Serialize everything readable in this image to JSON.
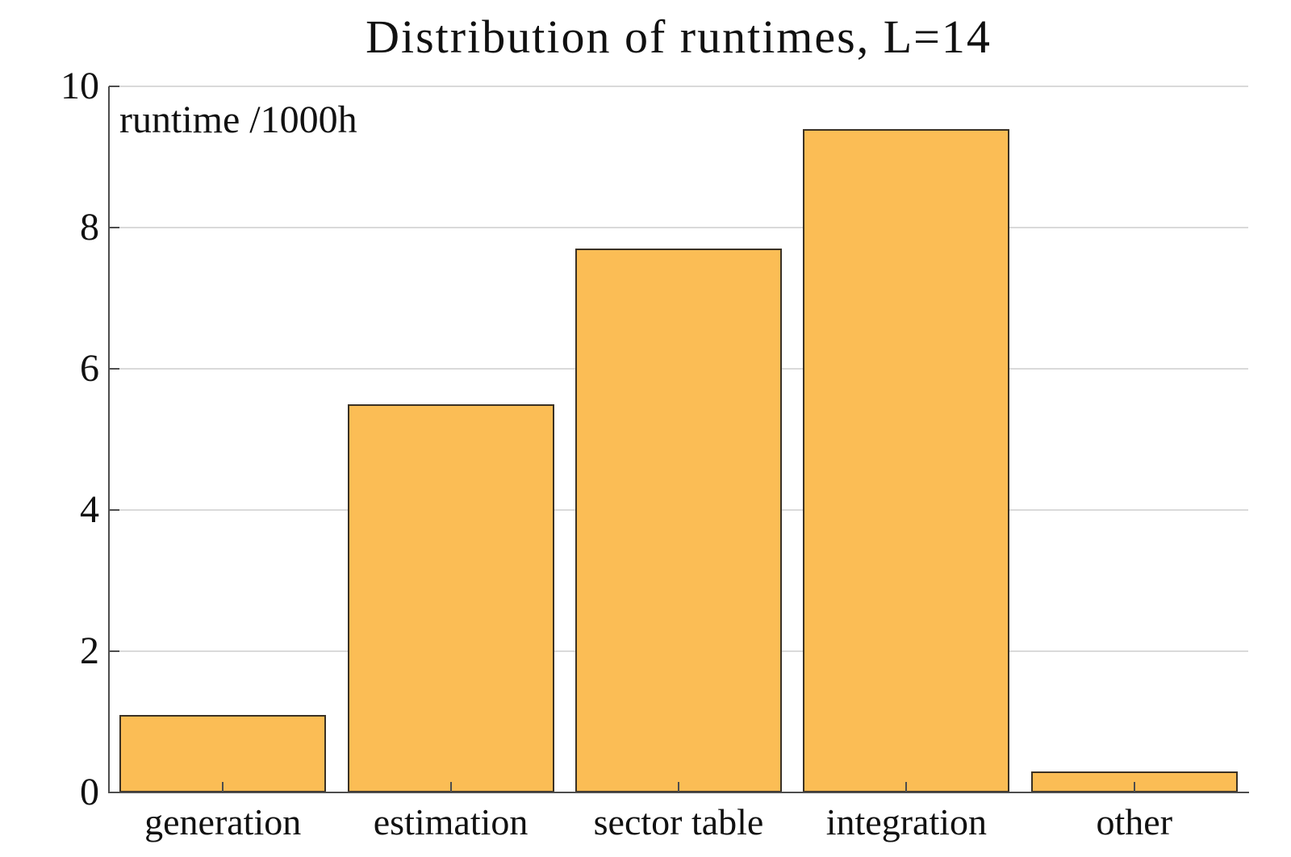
{
  "title": "Distribution of runtimes, L=14",
  "colors": {
    "bar_fill": "#fbbd55",
    "bar_stroke": "#3a3124",
    "spine": "#4d4d4d",
    "gridline": "#dadada",
    "text": "#111111",
    "background": "#ffffff"
  },
  "chart_data": {
    "type": "bar",
    "title": "Distribution of runtimes, L=14",
    "categories": [
      "generation",
      "estimation",
      "sector table",
      "integration",
      "other"
    ],
    "values": [
      1.1,
      5.5,
      7.7,
      9.4,
      0.3
    ],
    "xlabel": "",
    "ylabel": "runtime /1000h",
    "ylim": [
      0,
      10
    ],
    "yticks": [
      0,
      2,
      4,
      6,
      8,
      10
    ],
    "ytick_labels": [
      "0",
      "2",
      "4",
      "6",
      "8",
      "10"
    ],
    "grid": "horizontal gridlines at yticks, light gray",
    "legend_position": "none",
    "bar_gap_fraction": 0.094
  }
}
